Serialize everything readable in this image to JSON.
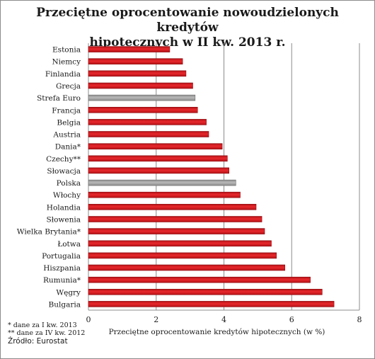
{
  "title_line1": "Przeciętne oprocentowanie nowoudzielonych kredytów",
  "title_line2": "hipotecznych w II kw. 2013 r.",
  "notes": {
    "note1": "* dane za I kw. 2013",
    "note2": "** dane za IV kw. 2012",
    "source": "Źródło: Eurostat"
  },
  "colors": {
    "bar": "#e8282c",
    "highlight": "#b8b8b8"
  },
  "chart_data": {
    "type": "bar",
    "orientation": "horizontal",
    "title": "Przeciętne oprocentowanie nowoudzielonych kredytów hipotecznych w II kw. 2013 r.",
    "xlabel": "Przeciętne oprocentowanie kredytów hipotecznych (w %)",
    "ylabel": "",
    "xlim": [
      0,
      8
    ],
    "xticks": [
      0,
      2,
      4,
      6,
      8
    ],
    "grid": "vertical",
    "legend": "none",
    "categories": [
      "Estonia",
      "Niemcy",
      "Finlandia",
      "Grecja",
      "Strefa Euro",
      "Francja",
      "Belgia",
      "Austria",
      "Dania*",
      "Czechy**",
      "Słowacja",
      "Polska",
      "Włochy",
      "Holandia",
      "Słowenia",
      "Wielka Brytania*",
      "Łotwa",
      "Portugalia",
      "Hiszpania",
      "Rumunia*",
      "Węgry",
      "Bulgaria"
    ],
    "values": [
      2.4,
      2.78,
      2.88,
      3.08,
      3.15,
      3.22,
      3.48,
      3.55,
      3.95,
      4.1,
      4.15,
      4.35,
      4.48,
      4.95,
      5.12,
      5.2,
      5.4,
      5.55,
      5.8,
      6.55,
      6.9,
      7.25
    ],
    "highlighted": [
      "Strefa Euro",
      "Polska"
    ]
  }
}
